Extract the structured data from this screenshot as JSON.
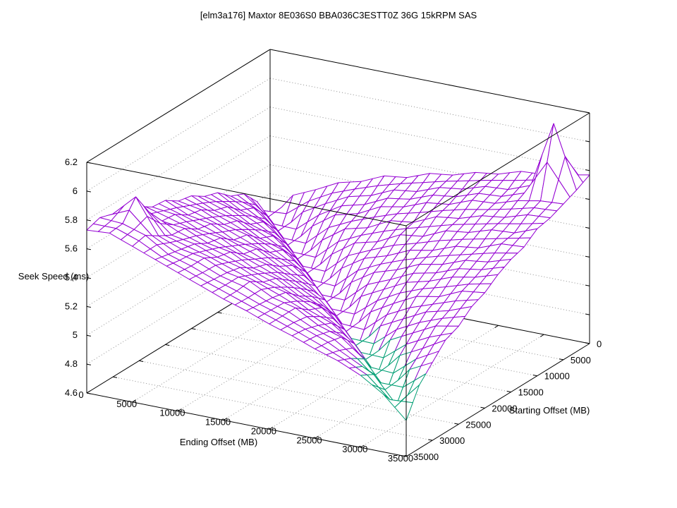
{
  "title": "[elm3a176] Maxtor 8E036S0 BBA036C3ESTT0Z 36G 15kRPM SAS",
  "axes": {
    "x": {
      "label": "Ending Offset (MB)",
      "tick_labels": [
        "0",
        "5000",
        "10000",
        "15000",
        "20000",
        "25000",
        "30000",
        "35000"
      ],
      "tick_values": [
        0,
        5000,
        10000,
        15000,
        20000,
        25000,
        30000,
        35000
      ],
      "min": 0,
      "max": 35000
    },
    "y": {
      "label": "Starting Offset (MB)",
      "tick_labels": [
        "0",
        "5000",
        "10000",
        "15000",
        "20000",
        "25000",
        "30000",
        "35000"
      ],
      "tick_values": [
        0,
        5000,
        10000,
        15000,
        20000,
        25000,
        30000,
        35000
      ],
      "min": 0,
      "max": 35000
    },
    "z": {
      "label": "Seek Speed (ms)",
      "tick_labels": [
        "4.6",
        "4.8",
        "5",
        "5.2",
        "5.4",
        "5.6",
        "5.8",
        "6",
        "6.2"
      ],
      "tick_values": [
        4.6,
        4.8,
        5.0,
        5.2,
        5.4,
        5.6,
        5.8,
        6.0,
        6.2
      ],
      "min": 4.6,
      "max": 6.2
    }
  },
  "colors": {
    "surface_top": "#9400d3",
    "surface_underside": "#009e73",
    "grid": "#8f8f8f",
    "border": "#000000",
    "background": "#ffffff",
    "text": "#000000"
  },
  "chart_data": {
    "type": "surface",
    "title": "[elm3a176] Maxtor 8E036S0 BBA036C3ESTT0Z 36G 15kRPM SAS",
    "xlabel": "Ending Offset (MB)",
    "ylabel": "Starting Offset (MB)",
    "zlabel": "Seek Speed (ms)",
    "xlim": [
      0,
      35000
    ],
    "ylim": [
      0,
      35000
    ],
    "zlim": [
      4.6,
      6.2
    ],
    "grid": "dotted",
    "x": [
      0,
      2500,
      5000,
      7500,
      10000,
      12500,
      15000,
      17500,
      20000,
      22500,
      25000,
      27500,
      30000,
      32500,
      35000
    ],
    "y": [
      0,
      2500,
      5000,
      7500,
      10000,
      12500,
      15000,
      17500,
      20000,
      22500,
      25000,
      27500,
      30000,
      32500,
      35000
    ],
    "z": [
      [
        5.02,
        5.22,
        5.29,
        5.37,
        5.41,
        5.48,
        5.5,
        5.56,
        5.58,
        5.63,
        5.65,
        5.7,
        5.71,
        5.74,
        5.77
      ],
      [
        5.2,
        5.02,
        5.19,
        5.28,
        5.36,
        5.4,
        5.47,
        5.49,
        5.55,
        5.57,
        5.62,
        5.63,
        5.69,
        6.15,
        5.72
      ],
      [
        5.31,
        5.19,
        5.01,
        5.18,
        5.29,
        5.33,
        5.41,
        5.44,
        5.5,
        5.52,
        5.58,
        5.59,
        5.64,
        5.67,
        5.68
      ],
      [
        5.35,
        5.3,
        5.18,
        5.0,
        5.17,
        5.28,
        5.32,
        5.4,
        5.42,
        5.49,
        5.51,
        5.56,
        5.58,
        5.63,
        5.64
      ],
      [
        5.43,
        5.34,
        5.29,
        5.17,
        4.99,
        5.16,
        5.27,
        5.31,
        5.39,
        5.41,
        5.48,
        5.5,
        5.55,
        5.56,
        5.62
      ],
      [
        5.46,
        5.42,
        5.33,
        5.28,
        5.16,
        4.98,
        5.15,
        5.25,
        5.3,
        5.37,
        5.4,
        5.46,
        5.48,
        5.54,
        5.55
      ],
      [
        5.52,
        5.45,
        5.41,
        5.32,
        5.27,
        5.15,
        4.96,
        5.14,
        5.24,
        5.29,
        5.36,
        5.39,
        5.45,
        5.47,
        5.52
      ],
      [
        5.54,
        5.51,
        5.44,
        5.4,
        5.31,
        5.25,
        5.14,
        4.95,
        5.13,
        5.21,
        5.29,
        5.33,
        5.39,
        5.42,
        5.47
      ],
      [
        5.6,
        5.53,
        5.5,
        5.42,
        5.39,
        5.3,
        5.22,
        5.13,
        4.94,
        5.11,
        5.2,
        5.28,
        5.31,
        5.38,
        5.4
      ],
      [
        5.61,
        5.59,
        5.52,
        5.49,
        5.41,
        5.37,
        5.29,
        5.21,
        5.11,
        4.92,
        5.1,
        5.18,
        5.26,
        5.3,
        5.36
      ],
      [
        5.67,
        5.6,
        5.58,
        5.51,
        5.48,
        5.4,
        5.36,
        5.27,
        5.22,
        5.1,
        4.91,
        5.09,
        5.17,
        5.25,
        5.28
      ],
      [
        5.68,
        5.72,
        5.59,
        5.56,
        5.5,
        5.46,
        5.39,
        5.35,
        5.26,
        5.2,
        5.09,
        4.9,
        5.07,
        5.15,
        5.24
      ],
      [
        5.73,
        5.88,
        5.64,
        5.58,
        5.55,
        5.48,
        5.45,
        5.37,
        5.33,
        5.24,
        5.19,
        5.07,
        4.88,
        5.06,
        5.14
      ],
      [
        5.76,
        5.75,
        5.7,
        5.6,
        5.55,
        5.49,
        5.44,
        5.38,
        5.33,
        5.27,
        5.21,
        5.13,
        5.05,
        4.87,
        5.04
      ],
      [
        5.73,
        5.74,
        5.68,
        5.62,
        5.56,
        5.5,
        5.44,
        5.39,
        5.33,
        5.28,
        5.22,
        5.17,
        5.1,
        5.0,
        4.85
      ]
    ],
    "anomaly_note": "spike at start=2500 end=32500 reaching 6.15 ms"
  }
}
